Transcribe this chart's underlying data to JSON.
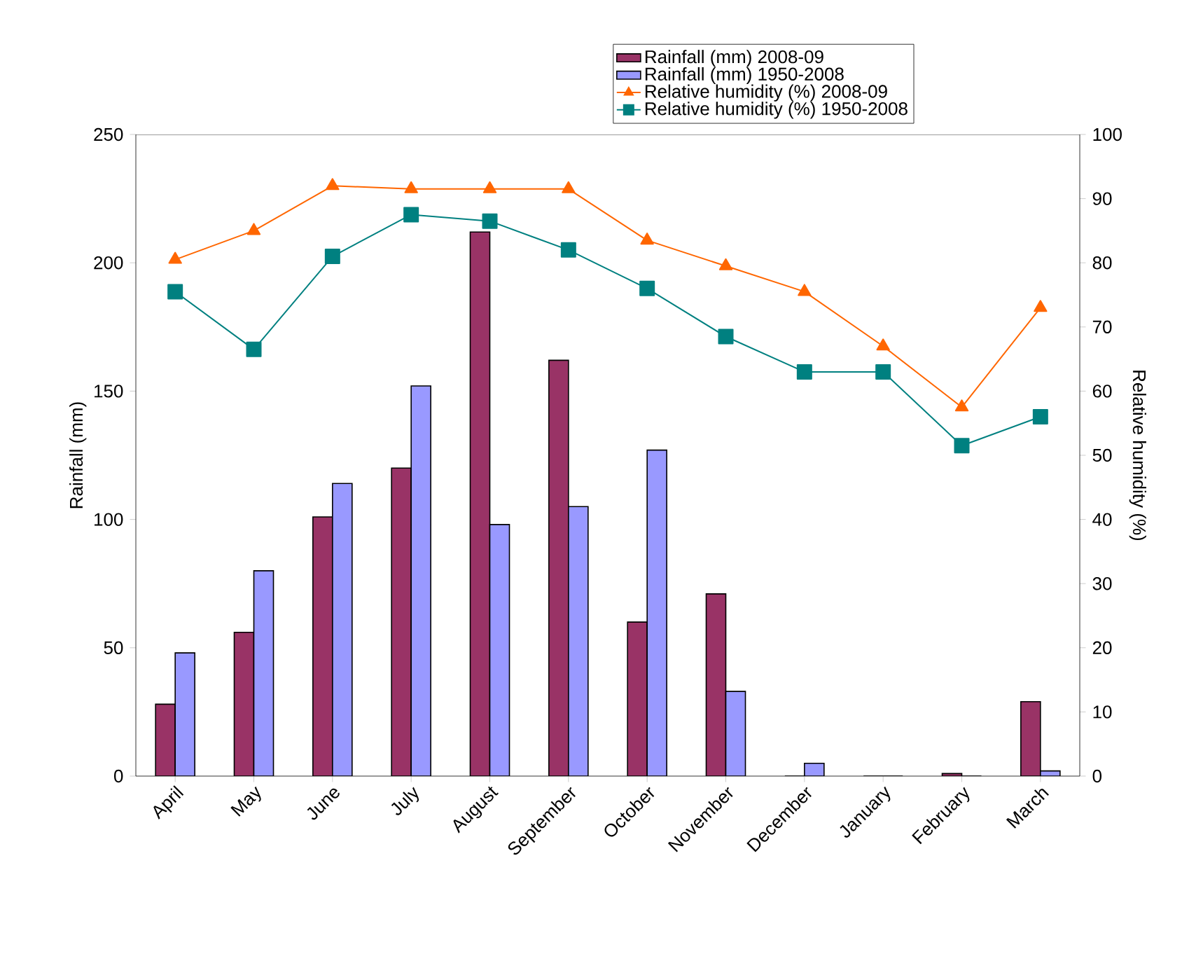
{
  "chart_data": {
    "type": "bar",
    "ylabel": "Rainfall (mm)",
    "y2label": "Relative humidity (%)",
    "categories": [
      "April",
      "May",
      "June",
      "July",
      "August",
      "September",
      "October",
      "November",
      "December",
      "January",
      "February",
      "March"
    ],
    "series": [
      {
        "name": "Rainfall (mm) 2008-09",
        "color": "#993366",
        "values": [
          28,
          56,
          101,
          120,
          212,
          162,
          60,
          71,
          0,
          0,
          1,
          29
        ]
      },
      {
        "name": "Rainfall (mm) 1950-2008",
        "color": "#9999ff",
        "values": [
          48,
          80,
          114,
          152,
          98,
          105,
          127,
          33,
          5,
          0,
          0,
          2
        ]
      },
      {
        "name": "Relative humidity (%) 2008-09",
        "type": "line",
        "axis": "y2",
        "marker": "triangle",
        "color": "#ff6600",
        "values": [
          80.5,
          85,
          92,
          91.5,
          91.5,
          91.5,
          83.5,
          79.5,
          75.5,
          67,
          57.5,
          73
        ]
      },
      {
        "name": "Relative humidity (%) 1950-2008",
        "type": "line",
        "axis": "y2",
        "marker": "square",
        "color": "#008080",
        "values": [
          75.5,
          66.5,
          81,
          87.5,
          86.5,
          82,
          76,
          68.5,
          63,
          63,
          51.5,
          56
        ]
      }
    ],
    "ylim": [
      0,
      250
    ],
    "yticks": [
      0,
      50,
      100,
      150,
      200,
      250
    ],
    "y2lim": [
      0,
      100
    ],
    "y2ticks": [
      0,
      10,
      20,
      30,
      40,
      50,
      60,
      70,
      80,
      90,
      100
    ],
    "legend": "top",
    "grid": false
  }
}
